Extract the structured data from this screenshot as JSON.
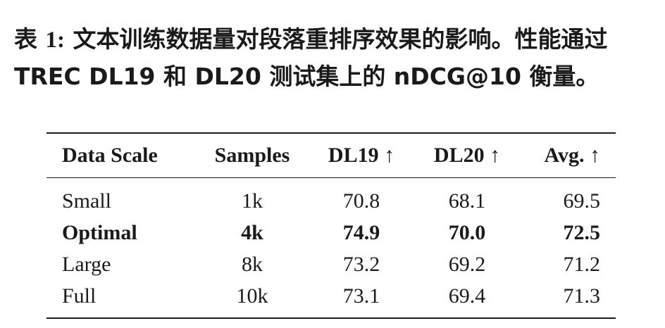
{
  "caption": {
    "label": "表 ",
    "number": "1:",
    "text": " 文本训练数据量对段落重排序效果的影响。性能通过 TREC DL19 和 DL20 测试集上的 nDCG@10 衡量。"
  },
  "table": {
    "headers": [
      "Data Scale",
      "Samples",
      "DL19 ↑",
      "DL20 ↑",
      "Avg. ↑"
    ],
    "rows": [
      [
        "Small",
        "1k",
        "70.8",
        "68.1",
        "69.5"
      ],
      [
        "Optimal",
        "4k",
        "74.9",
        "70.0",
        "72.5"
      ],
      [
        "Large",
        "8k",
        "73.2",
        "69.2",
        "71.2"
      ],
      [
        "Full",
        "10k",
        "73.1",
        "69.4",
        "71.3"
      ]
    ]
  }
}
